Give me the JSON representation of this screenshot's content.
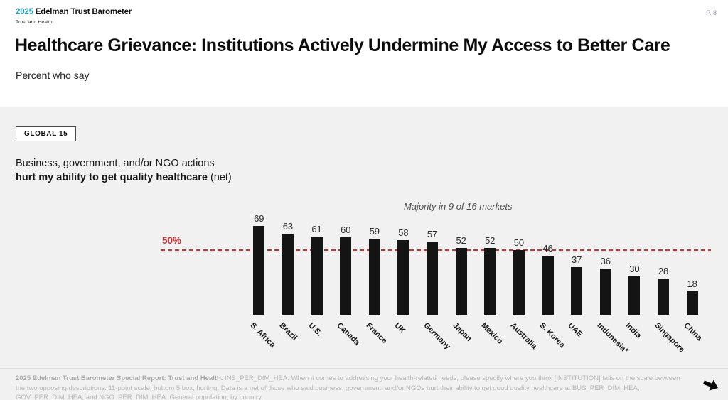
{
  "header": {
    "logo_year": "2025",
    "logo_name": "Edelman Trust Barometer",
    "logo_subtitle": "Trust and Health",
    "page_number": "P. 8",
    "title": "Healthcare Grievance: Institutions Actively Undermine My Access to Better Care",
    "subtitle": "Percent who say"
  },
  "content": {
    "badge_label": "GLOBAL 15",
    "description_line1": "Business, government, and/or NGO actions",
    "description_line2_bold": "hurt my ability to get quality healthcare",
    "description_line2_suffix": " (net)"
  },
  "chart_data": {
    "type": "bar",
    "title": "",
    "annotation": "Majority in 9 of 16 markets",
    "categories": [
      "S. Africa",
      "Brazil",
      "U.S.",
      "Canada",
      "France",
      "UK",
      "Germany",
      "Japan",
      "Mexico",
      "Australia",
      "S. Korea",
      "UAE",
      "Indonesia*",
      "India",
      "Singapore",
      "China"
    ],
    "values": [
      69,
      63,
      61,
      60,
      59,
      58,
      57,
      52,
      52,
      50,
      46,
      37,
      36,
      30,
      28,
      18
    ],
    "reference_line": {
      "value": 50,
      "label": "50%",
      "color": "#c23130"
    },
    "bar_color": "#141414",
    "xlabel": "",
    "ylabel": "",
    "ylim": [
      0,
      80
    ],
    "grid": false,
    "legend": "none",
    "value_labels": true,
    "category_label_rotation_deg": 45
  },
  "footer": {
    "source_bold": "2025 Edelman Trust Barometer Special Report: Trust and Health.",
    "source_text": " INS_PER_DIM_HEA. When it comes to addressing your health-related needs, please specify where you think [INSTITUTION] falls on the scale between the two opposing descriptions. 11-point scale; bottom 5 box, hurting. Data is a net of those who said business, government, and/or NGOs hurt their ability to get good quality healthcare at BUS_PER_DIM_HEA, GOV_PER_DIM_HEA, and NGO_PER_DIM_HEA. General population, by country.",
    "next_arrow_icon": "next-slide-arrow"
  },
  "colors": {
    "accent_teal": "#1e9ab6",
    "reference_red": "#c23130",
    "bar_black": "#141414",
    "content_background": "#f1f1f1"
  }
}
